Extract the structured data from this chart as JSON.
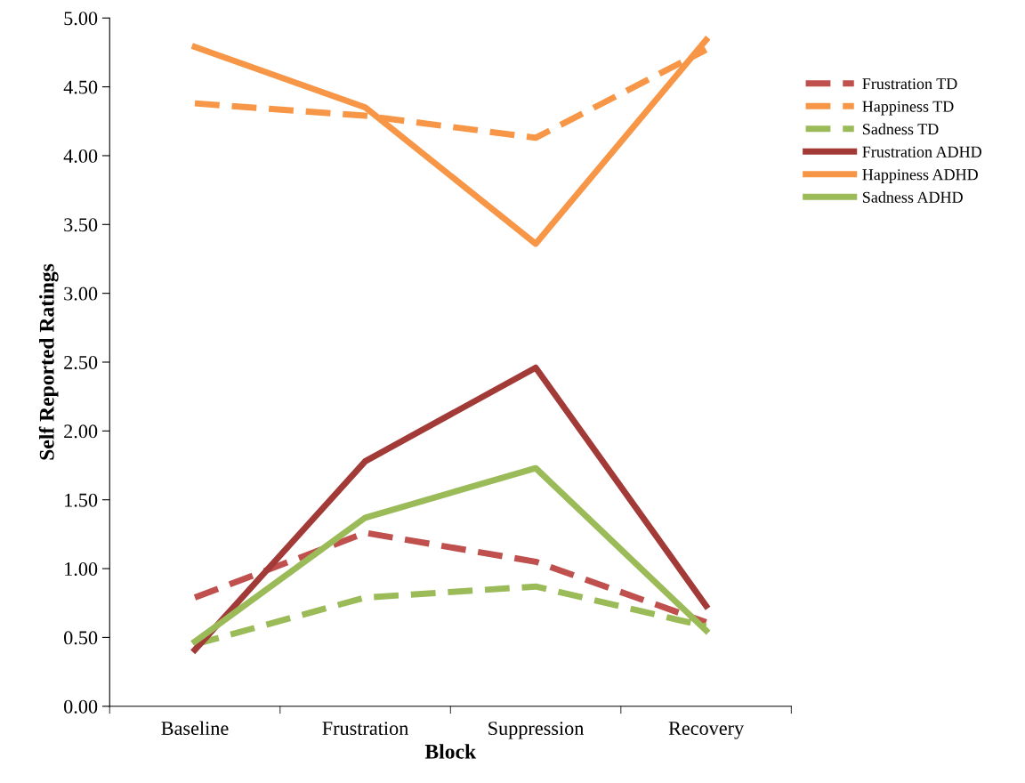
{
  "chart_data": {
    "type": "line",
    "xlabel": "Block",
    "ylabel": "Self Reported Ratings",
    "categories": [
      "Baseline",
      "Frustration",
      "Suppression",
      "Recovery"
    ],
    "series": [
      {
        "name": "Frustration TD",
        "color": "#c0504d",
        "line_style": "dashed",
        "values": [
          0.79,
          1.26,
          1.05,
          0.61
        ]
      },
      {
        "name": "Happiness TD",
        "color": "#f79646",
        "line_style": "dashed",
        "values": [
          4.38,
          4.29,
          4.13,
          4.77
        ]
      },
      {
        "name": "Sadness TD",
        "color": "#9bbb59",
        "line_style": "dashed",
        "values": [
          0.45,
          0.79,
          0.87,
          0.58
        ]
      },
      {
        "name": "Frustration ADHD",
        "color": "#a23b37",
        "line_style": "solid",
        "values": [
          0.41,
          1.78,
          2.46,
          0.73
        ]
      },
      {
        "name": "Happiness ADHD",
        "color": "#f79646",
        "line_style": "solid",
        "values": [
          4.79,
          4.35,
          3.36,
          4.84
        ]
      },
      {
        "name": "Sadness ADHD",
        "color": "#9bbb59",
        "line_style": "solid",
        "values": [
          0.47,
          1.37,
          1.73,
          0.55
        ]
      }
    ],
    "ylim": [
      0,
      5
    ],
    "yticks": [
      {
        "value": 0,
        "label": "0.00"
      },
      {
        "value": 0.5,
        "label": "0.50"
      },
      {
        "value": 1,
        "label": "1.00"
      },
      {
        "value": 1.5,
        "label": "1.50"
      },
      {
        "value": 2,
        "label": "2.00"
      },
      {
        "value": 2.5,
        "label": "2.50"
      },
      {
        "value": 3,
        "label": "3.00"
      },
      {
        "value": 3.5,
        "label": "3.50"
      },
      {
        "value": 4,
        "label": "4.00"
      },
      {
        "value": 4.5,
        "label": "4.50"
      },
      {
        "value": 5,
        "label": "5.00"
      }
    ],
    "grid": false,
    "legend": "right",
    "marker": "none"
  }
}
